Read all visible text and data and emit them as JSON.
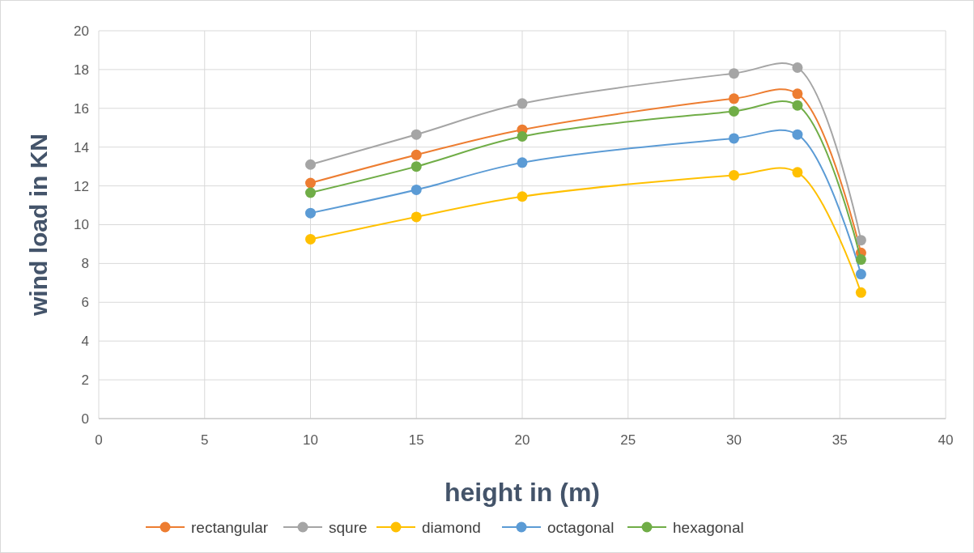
{
  "chart_data": {
    "type": "line",
    "xlabel": "height in (m)",
    "ylabel": "wind load in KN",
    "x": [
      10,
      15,
      20,
      30,
      33,
      36
    ],
    "series": [
      {
        "name": "rectangular",
        "color": "#ed7d31",
        "values": [
          12.15,
          13.6,
          14.9,
          16.5,
          16.75,
          8.55
        ]
      },
      {
        "name": "squre",
        "color": "#a5a5a5",
        "values": [
          13.1,
          14.65,
          16.25,
          17.8,
          18.1,
          9.2
        ]
      },
      {
        "name": "diamond",
        "color": "#ffc000",
        "values": [
          9.25,
          10.4,
          11.45,
          12.55,
          12.7,
          6.5
        ]
      },
      {
        "name": "octagonal",
        "color": "#5b9bd5",
        "values": [
          10.6,
          11.8,
          13.2,
          14.45,
          14.65,
          7.45
        ]
      },
      {
        "name": "hexagonal",
        "color": "#70ad47",
        "values": [
          11.65,
          13.0,
          14.55,
          15.85,
          16.15,
          8.2
        ]
      }
    ],
    "xlim": [
      0,
      40
    ],
    "xticks": [
      0,
      5,
      10,
      15,
      20,
      25,
      30,
      35,
      40
    ],
    "ylim": [
      0,
      20
    ],
    "yticks": [
      0,
      2,
      4,
      6,
      8,
      10,
      12,
      14,
      16,
      18,
      20
    ],
    "grid": true,
    "legend": "bottom",
    "marker": "circle",
    "line_style": "solid"
  }
}
